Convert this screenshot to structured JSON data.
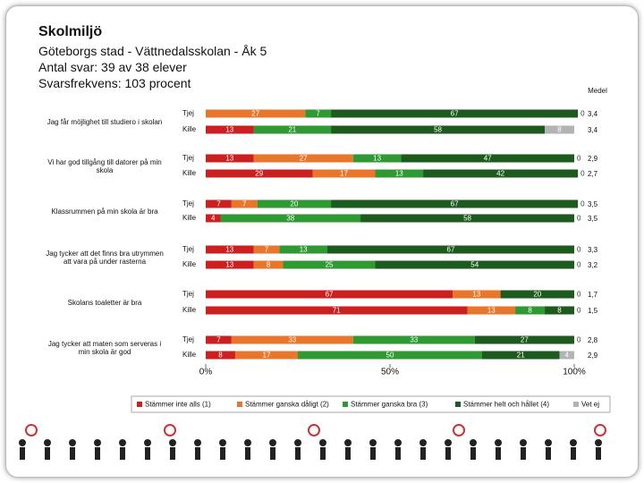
{
  "chart_data": {
    "type": "stacked-bar-horizontal",
    "title": "Skolmiljö",
    "subtitle": [
      "Göteborgs stad - Vättnedalsskolan - Åk 5",
      "Antal svar: 39 av 38 elever",
      "Svarsfrekvens: 103 procent"
    ],
    "questions": [
      "Jag får möjlighet till studiero i skolan",
      "Vi har god tillgång till datorer på min skola",
      "Klassrummen på min skola är bra",
      "Jag tycker att det finns bra utrymmen att vara på under rasterna",
      "Skolans toaletter är bra",
      "Jag tycker att maten som serveras i min skola är god"
    ],
    "categories": [
      "Tjej",
      "Kille",
      "Tjej",
      "Kille",
      "Tjej",
      "Kille",
      "Tjej",
      "Kille",
      "Tjej",
      "Kille",
      "Tjej",
      "Kille"
    ],
    "series": [
      {
        "name": "Stämmer inte alls (1)",
        "color": "#cc2020",
        "values": [
          0,
          13,
          13,
          29,
          7,
          4,
          13,
          13,
          67,
          71,
          7,
          8
        ]
      },
      {
        "name": "Stämmer ganska dåligt (2)",
        "color": "#e8772c",
        "values": [
          27,
          0,
          27,
          17,
          7,
          0,
          7,
          8,
          13,
          13,
          33,
          17
        ]
      },
      {
        "name": "Stämmer ganska bra (3)",
        "color": "#2f9a33",
        "values": [
          7,
          21,
          13,
          13,
          20,
          38,
          13,
          25,
          0,
          8,
          33,
          50
        ]
      },
      {
        "name": "Stämmer helt och hållet (4)",
        "color": "#1c5a1e",
        "values": [
          67,
          58,
          47,
          42,
          67,
          58,
          67,
          54,
          20,
          8,
          27,
          21
        ]
      },
      {
        "name": "Vet ej",
        "color": "#b3b3b3",
        "values": [
          0,
          8,
          0,
          0,
          0,
          0,
          0,
          0,
          0,
          0,
          0,
          4
        ]
      }
    ],
    "mean": {
      "name": "Medel",
      "values": [
        3.4,
        3.4,
        2.9,
        2.7,
        3.5,
        3.5,
        3.3,
        3.2,
        1.7,
        1.5,
        2.8,
        2.9
      ],
      "value_labels": [
        "3,4",
        "3,4",
        "2,9",
        "2,7",
        "3,5",
        "3,5",
        "3,3",
        "3,2",
        "1,7",
        "1,5",
        "2,8",
        "2,9"
      ]
    },
    "xlim": [
      0,
      100
    ],
    "xticks": [
      {
        "value": 0,
        "label": "0%"
      },
      {
        "value": 50,
        "label": "50%"
      },
      {
        "value": 100,
        "label": "100%"
      }
    ]
  }
}
